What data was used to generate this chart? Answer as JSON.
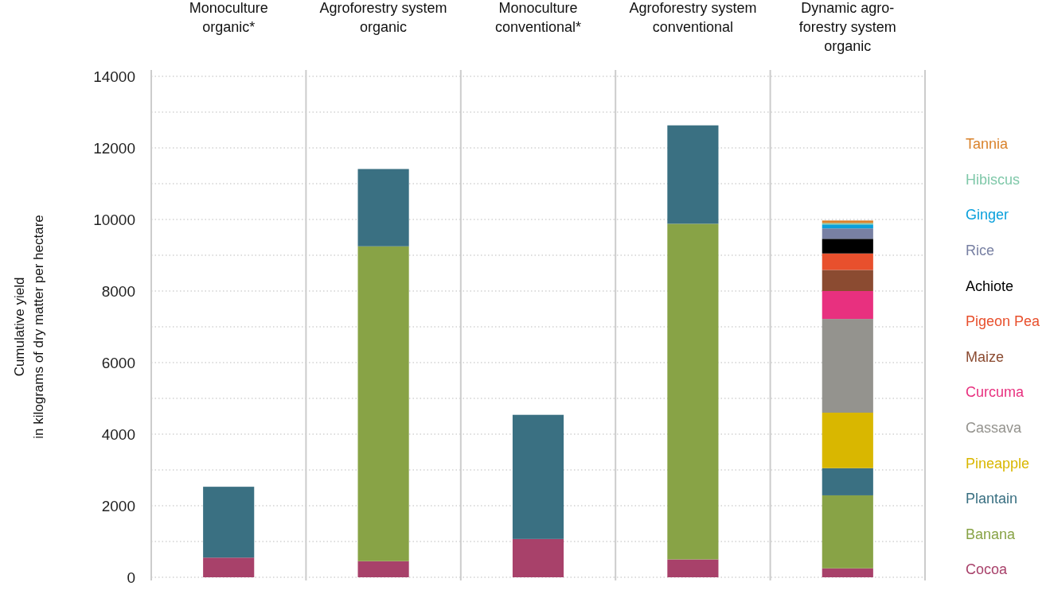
{
  "chart_data": {
    "type": "bar",
    "stacked": true,
    "ylabel": "Cumulative yield\nin kilograms of dry matter per hectare",
    "categories": [
      "Monoculture\norganic*",
      "Agroforestry system\norganic",
      "Monoculture\nconventional*",
      "Agroforestry system\nconventional",
      "Dynamic agro-\nforestry system\norganic"
    ],
    "ylim": [
      0,
      14000
    ],
    "yticks": [
      0,
      2000,
      4000,
      6000,
      8000,
      10000,
      12000,
      14000
    ],
    "grid": "y",
    "legend": "right",
    "series": [
      {
        "name": "Cocoa",
        "color": "#a8416a",
        "values": [
          550,
          450,
          1070,
          500,
          250
        ]
      },
      {
        "name": "Banana",
        "color": "#88a346",
        "values": [
          null,
          8800,
          null,
          9380,
          2040
        ]
      },
      {
        "name": "Plantain",
        "color": "#3a7082",
        "values": [
          1980,
          2160,
          3470,
          2750,
          760
        ]
      },
      {
        "name": "Pineapple",
        "color": "#d9b700",
        "values": [
          null,
          null,
          null,
          null,
          1550
        ]
      },
      {
        "name": "Cassava",
        "color": "#94938e",
        "values": [
          null,
          null,
          null,
          null,
          2620
        ]
      },
      {
        "name": "Curcuma",
        "color": "#e8307f",
        "values": [
          null,
          null,
          null,
          null,
          780
        ]
      },
      {
        "name": "Maize",
        "color": "#8b4b31",
        "values": [
          null,
          null,
          null,
          null,
          590
        ]
      },
      {
        "name": "Pigeon Pea",
        "color": "#e8502d",
        "values": [
          null,
          null,
          null,
          null,
          460
        ]
      },
      {
        "name": "Achiote",
        "color": "#000000",
        "values": [
          null,
          null,
          null,
          null,
          410
        ]
      },
      {
        "name": "Rice",
        "color": "#7880a3",
        "values": [
          null,
          null,
          null,
          null,
          290
        ]
      },
      {
        "name": "Ginger",
        "color": "#0aa0dc",
        "values": [
          null,
          null,
          null,
          null,
          110
        ]
      },
      {
        "name": "Hibiscus",
        "color": "#7fc8a9",
        "values": [
          null,
          null,
          null,
          null,
          40
        ]
      },
      {
        "name": "Tannia",
        "color": "#d9822b",
        "values": [
          null,
          null,
          null,
          null,
          70
        ]
      }
    ]
  }
}
